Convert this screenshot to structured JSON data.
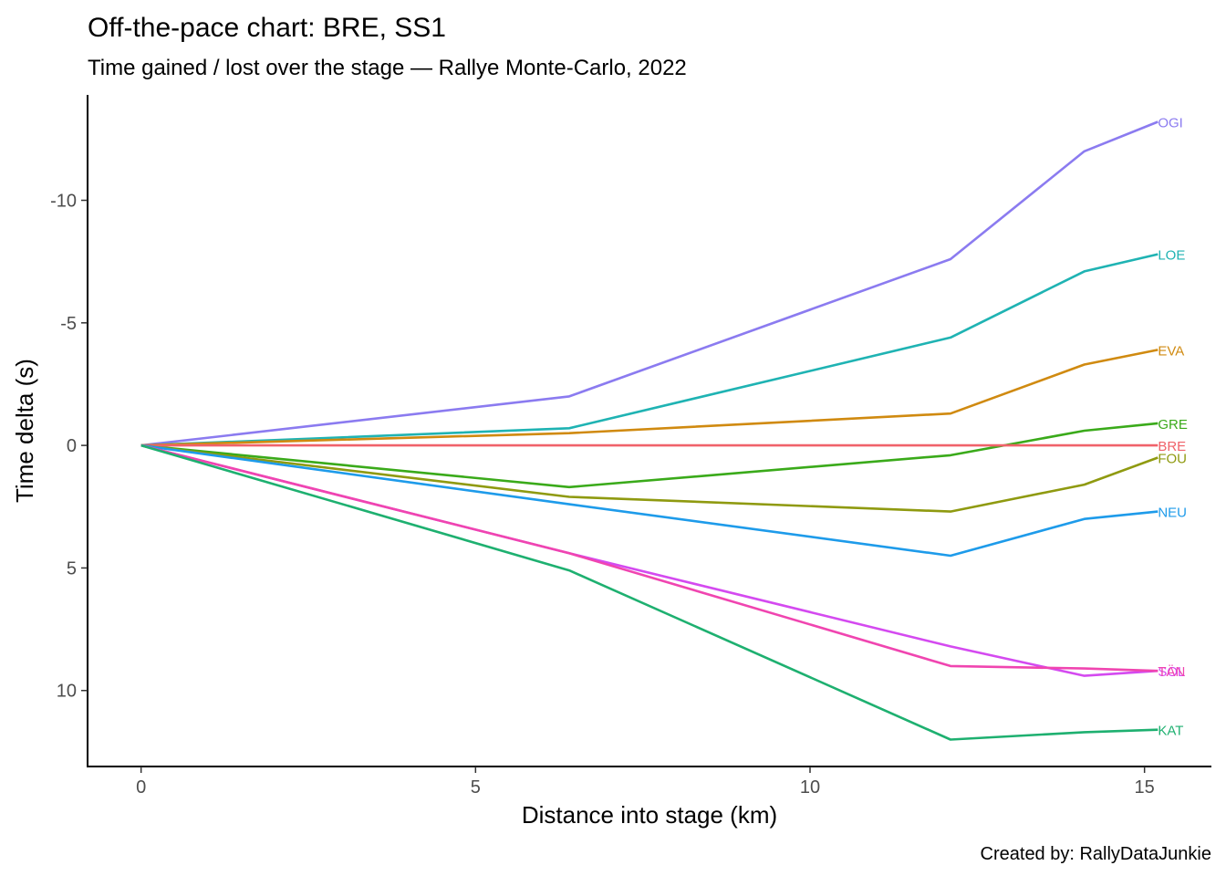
{
  "chart_data": {
    "type": "line",
    "title": "Off-the-pace chart: BRE, SS1",
    "subtitle": "Time gained / lost over the stage — Rallye Monte-Carlo, 2022",
    "caption": "Created by: RallyDataJunkie",
    "xlabel": "Distance into stage (km)",
    "ylabel": "Time delta (s)",
    "xlim": [
      -0.8,
      16.0
    ],
    "ylim": [
      13.1,
      -14.3
    ],
    "y_reversed": true,
    "x_ticks": [
      0,
      5,
      10,
      15
    ],
    "x_tick_labels": [
      "0",
      "5",
      "10",
      "15"
    ],
    "y_ticks": [
      -10,
      -5,
      0,
      5,
      10
    ],
    "y_tick_labels": [
      "-10",
      "-5",
      "0",
      "5",
      "10"
    ],
    "grid": false,
    "legend": "none (series labels at line ends)",
    "series": [
      {
        "name": "OGI",
        "color": "#8B7BF0",
        "x": [
          0,
          6.4,
          12.1,
          14.1,
          15.2
        ],
        "y": [
          0,
          -2.0,
          -7.6,
          -12.0,
          -13.2
        ]
      },
      {
        "name": "LOE",
        "color": "#1FB3B3",
        "x": [
          0,
          6.4,
          12.1,
          14.1,
          15.2
        ],
        "y": [
          0,
          -0.7,
          -4.4,
          -7.1,
          -7.8
        ]
      },
      {
        "name": "EVA",
        "color": "#D08A10",
        "x": [
          0,
          6.4,
          12.1,
          14.1,
          15.2
        ],
        "y": [
          0,
          -0.5,
          -1.3,
          -3.3,
          -3.9
        ]
      },
      {
        "name": "GRE",
        "color": "#3AAA1A",
        "x": [
          0,
          6.4,
          12.1,
          14.1,
          15.2
        ],
        "y": [
          0,
          1.7,
          0.4,
          -0.6,
          -0.9
        ]
      },
      {
        "name": "BRE",
        "color": "#F0626A",
        "x": [
          0,
          6.4,
          12.1,
          14.1,
          15.2
        ],
        "y": [
          0,
          0,
          0,
          0,
          0
        ]
      },
      {
        "name": "FOU",
        "color": "#8F9A10",
        "x": [
          0,
          6.4,
          12.1,
          14.1,
          15.2
        ],
        "y": [
          0,
          2.1,
          2.7,
          1.6,
          0.5
        ]
      },
      {
        "name": "NEU",
        "color": "#1E9BEA",
        "x": [
          0,
          6.4,
          12.1,
          14.1,
          15.2
        ],
        "y": [
          0,
          2.4,
          4.5,
          3.0,
          2.7
        ]
      },
      {
        "name": "SOL",
        "color": "#D44AF0",
        "x": [
          0,
          6.4,
          12.1,
          14.1,
          15.2
        ],
        "y": [
          0,
          4.4,
          8.2,
          9.4,
          9.2
        ]
      },
      {
        "name": "TÄN",
        "color": "#F045B0",
        "x": [
          0,
          6.4,
          12.1,
          14.1,
          15.2
        ],
        "y": [
          0,
          4.4,
          9.0,
          9.1,
          9.2
        ]
      },
      {
        "name": "KAT",
        "color": "#1EB070",
        "x": [
          0,
          6.4,
          12.1,
          14.1,
          15.2
        ],
        "y": [
          0,
          5.1,
          12.0,
          11.7,
          11.6
        ]
      }
    ]
  }
}
